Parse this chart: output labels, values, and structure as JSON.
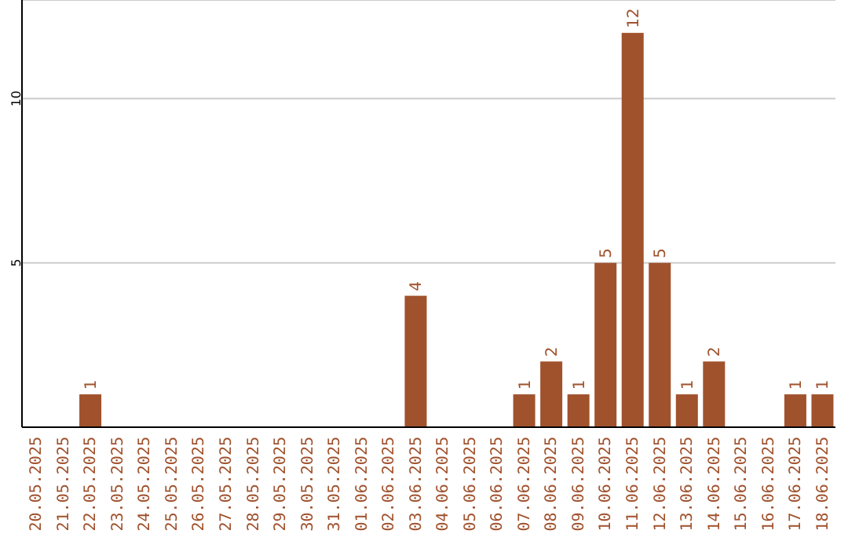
{
  "chart_data": {
    "type": "bar",
    "categories": [
      "20.05.2025",
      "21.05.2025",
      "22.05.2025",
      "23.05.2025",
      "24.05.2025",
      "25.05.2025",
      "26.05.2025",
      "27.05.2025",
      "28.05.2025",
      "29.05.2025",
      "30.05.2025",
      "31.05.2025",
      "01.06.2025",
      "02.06.2025",
      "03.06.2025",
      "04.06.2025",
      "05.06.2025",
      "06.06.2025",
      "07.06.2025",
      "08.06.2025",
      "09.06.2025",
      "10.06.2025",
      "11.06.2025",
      "12.06.2025",
      "13.06.2025",
      "14.06.2025",
      "15.06.2025",
      "16.06.2025",
      "17.06.2025",
      "18.06.2025"
    ],
    "values": [
      0,
      0,
      1,
      0,
      0,
      0,
      0,
      0,
      0,
      0,
      0,
      0,
      0,
      0,
      4,
      0,
      0,
      0,
      1,
      2,
      1,
      5,
      12,
      5,
      1,
      2,
      0,
      0,
      1,
      1
    ],
    "value_labels": [
      null,
      null,
      "1",
      null,
      null,
      null,
      null,
      null,
      null,
      null,
      null,
      null,
      null,
      null,
      "4",
      null,
      null,
      null,
      "1",
      "2",
      "1",
      "5",
      "12",
      "5",
      "1",
      "2",
      null,
      null,
      "1",
      "1"
    ],
    "color": "#a0522d",
    "ylim": [
      0,
      13
    ],
    "yticks": [
      5,
      10
    ],
    "grid": "y"
  }
}
